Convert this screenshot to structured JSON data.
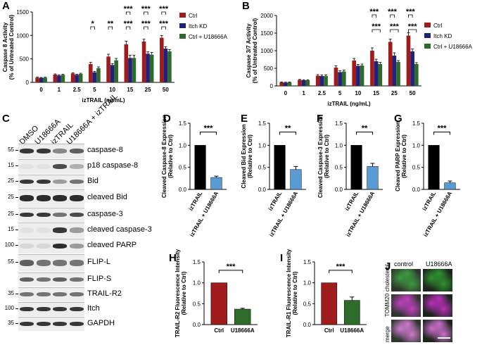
{
  "panels": {
    "A": {
      "label": "A"
    },
    "B": {
      "label": "B"
    },
    "C": {
      "label": "C"
    },
    "D": {
      "label": "D"
    },
    "E": {
      "label": "E"
    },
    "F": {
      "label": "F"
    },
    "G": {
      "label": "G"
    },
    "H": {
      "label": "H"
    },
    "I": {
      "label": "I"
    },
    "J": {
      "label": "J"
    }
  },
  "colors": {
    "ctrl": "#a01c1c",
    "itch_kd": "#22207a",
    "u18666a": "#2e6b2a",
    "black": "#000000",
    "blue": "#5b9bd5"
  },
  "chart_data": [
    {
      "id": "A",
      "type": "bar",
      "categories": [
        "0",
        "1",
        "2.5",
        "5",
        "10",
        "15",
        "25",
        "50"
      ],
      "xlabel": "izTRAIL (ng/mL)",
      "ylabel": "Caspase 8 Activity (% of Untreated Control)",
      "ylim": [
        0,
        1500
      ],
      "yticks": [
        "0",
        "500",
        "1000",
        "1500"
      ],
      "series": [
        {
          "name": "Ctrl",
          "color": "#a01c1c",
          "values": [
            100,
            165,
            190,
            390,
            550,
            810,
            870,
            950
          ],
          "err": [
            10,
            15,
            15,
            40,
            50,
            70,
            50,
            50
          ]
        },
        {
          "name": "Itch KD",
          "color": "#22207a",
          "values": [
            95,
            145,
            160,
            215,
            370,
            520,
            610,
            720
          ],
          "err": [
            10,
            15,
            15,
            20,
            30,
            60,
            40,
            40
          ]
        },
        {
          "name": "Ctrl + U18666A",
          "color": "#2e6b2a",
          "values": [
            100,
            160,
            180,
            300,
            470,
            520,
            590,
            660
          ],
          "err": [
            10,
            15,
            15,
            30,
            40,
            60,
            50,
            40
          ]
        }
      ],
      "legend": "top-right",
      "significance": [
        {
          "i": 3,
          "row": 1,
          "text": "*"
        },
        {
          "i": 4,
          "row": 1,
          "text": "**"
        },
        {
          "i": 5,
          "row": 2,
          "text": "***"
        },
        {
          "i": 6,
          "row": 2,
          "text": "***"
        },
        {
          "i": 7,
          "row": 2,
          "text": "***"
        },
        {
          "i": 5,
          "row": 1,
          "text": "***"
        },
        {
          "i": 6,
          "row": 1,
          "text": "***"
        },
        {
          "i": 7,
          "row": 1,
          "text": "***"
        }
      ]
    },
    {
      "id": "B",
      "type": "bar",
      "categories": [
        "0",
        "1",
        "2.5",
        "5",
        "10",
        "15",
        "25",
        "50"
      ],
      "xlabel": "izTRAIL (ng/mL)",
      "ylabel": "Caspase 3/7 Activity (% of Untreated Control)",
      "ylim": [
        0,
        2000
      ],
      "yticks": [
        "0",
        "500",
        "1000",
        "1500",
        "2000"
      ],
      "series": [
        {
          "name": "Ctrl",
          "color": "#a01c1c",
          "values": [
            100,
            170,
            290,
            520,
            720,
            1000,
            1250,
            1430
          ],
          "err": [
            10,
            15,
            30,
            50,
            60,
            80,
            80,
            80
          ]
        },
        {
          "name": "Itch KD",
          "color": "#22207a",
          "values": [
            95,
            160,
            280,
            390,
            570,
            700,
            860,
            980
          ],
          "err": [
            10,
            15,
            30,
            40,
            40,
            60,
            80,
            70
          ]
        },
        {
          "name": "Ctrl + U18666A",
          "color": "#2e6b2a",
          "values": [
            100,
            160,
            280,
            410,
            580,
            620,
            680,
            620
          ],
          "err": [
            10,
            15,
            30,
            40,
            40,
            50,
            40,
            40
          ]
        }
      ],
      "legend": "top-right",
      "significance": [
        {
          "i": 5,
          "row": 2,
          "text": "***"
        },
        {
          "i": 6,
          "row": 2,
          "text": "***"
        },
        {
          "i": 7,
          "row": 2,
          "text": "***"
        },
        {
          "i": 5,
          "row": 1,
          "text": "***"
        },
        {
          "i": 6,
          "row": 1,
          "text": "***"
        },
        {
          "i": 7,
          "row": 1,
          "text": "***"
        }
      ]
    },
    {
      "id": "D",
      "type": "bar",
      "categories": [
        "izTRAIL",
        "izTRAIL + U18666A"
      ],
      "ylabel": "Cleaved Caspase-8 Expression (Relative to Ctrl)",
      "ylim": [
        0,
        1.5
      ],
      "yticks": [
        "0.0",
        "0.5",
        "1.0",
        "1.5"
      ],
      "values": [
        1.0,
        0.27
      ],
      "err": [
        0,
        0.03
      ],
      "colors": [
        "#000000",
        "#5b9bd5"
      ],
      "sig": "***"
    },
    {
      "id": "E",
      "type": "bar",
      "categories": [
        "izTRAIL",
        "izTRAIL + U18666A"
      ],
      "ylabel": "Cleaved Bid Expression (Relative to Ctrl)",
      "ylim": [
        0,
        1.5
      ],
      "yticks": [
        "0.0",
        "0.5",
        "1.0",
        "1.5"
      ],
      "values": [
        1.0,
        0.45
      ],
      "err": [
        0,
        0.07
      ],
      "colors": [
        "#000000",
        "#5b9bd5"
      ],
      "sig": "**"
    },
    {
      "id": "F",
      "type": "bar",
      "categories": [
        "izTRAIL",
        "izTRAIL + U18666A"
      ],
      "ylabel": "Cleaved Caspase-3 Expression (Relative to Ctrl)",
      "ylim": [
        0,
        1.5
      ],
      "yticks": [
        "0.0",
        "0.5",
        "1.0",
        "1.5"
      ],
      "values": [
        1.0,
        0.52
      ],
      "err": [
        0,
        0.07
      ],
      "colors": [
        "#000000",
        "#5b9bd5"
      ],
      "sig": "**"
    },
    {
      "id": "G",
      "type": "bar",
      "categories": [
        "izTRAIL",
        "izTRAIL + U18666A"
      ],
      "ylabel": "Cleaved PARP Expression (Relative to Ctrl)",
      "ylim": [
        0,
        1.5
      ],
      "yticks": [
        "0.0",
        "0.5",
        "1.0",
        "1.5"
      ],
      "values": [
        1.0,
        0.15
      ],
      "err": [
        0,
        0.04
      ],
      "colors": [
        "#000000",
        "#5b9bd5"
      ],
      "sig": "***"
    },
    {
      "id": "H",
      "type": "bar",
      "categories": [
        "Ctrl",
        "U18666A"
      ],
      "ylabel": "TRAIL-R2 Fluorescence Intensity (Relative to Ctrl)",
      "ylim": [
        0,
        1.5
      ],
      "yticks": [
        "0.0",
        "0.5",
        "1.0",
        "1.5"
      ],
      "values": [
        1.0,
        0.37
      ],
      "err": [
        0,
        0.02
      ],
      "colors": [
        "#a01c1c",
        "#2e6b2a"
      ],
      "sig": "***"
    },
    {
      "id": "I",
      "type": "bar",
      "categories": [
        "Ctrl",
        "U18666A"
      ],
      "ylabel": "TRAIL-R1 Fluorescence Intensity (Relative to Ctrl)",
      "ylim": [
        0,
        1.5
      ],
      "yticks": [
        "0.0",
        "0.5",
        "1.0",
        "1.5"
      ],
      "values": [
        1.0,
        0.58
      ],
      "err": [
        0,
        0.08
      ],
      "colors": [
        "#a01c1c",
        "#2e6b2a"
      ],
      "sig": "***"
    }
  ],
  "blot": {
    "lanes": [
      "DMSO",
      "U18666A",
      "izTRAIL",
      "U18666A + izTRAIL"
    ],
    "rows": [
      {
        "name": "caspase-8",
        "mw": "55",
        "intensity": [
          0.9,
          0.9,
          0.5,
          0.7
        ]
      },
      {
        "name": "p18 caspase-8",
        "mw": "15",
        "intensity": [
          0.05,
          0.05,
          0.8,
          0.3
        ]
      },
      {
        "name": "Bid",
        "mw": "25",
        "intensity": [
          0.9,
          0.9,
          0.4,
          0.6
        ]
      },
      {
        "name": "cleaved Bid",
        "mw": "25",
        "intensity": [
          0.95,
          0.95,
          0.95,
          0.95
        ]
      },
      {
        "name": "caspase-3",
        "mw": "25",
        "intensity": [
          0.9,
          0.9,
          0.6,
          0.8
        ]
      },
      {
        "name": "cleaved caspase-3",
        "mw": "15",
        "intensity": [
          0.05,
          0.05,
          0.9,
          0.4
        ]
      },
      {
        "name": "cleaved PARP",
        "mw": "100",
        "intensity": [
          0.1,
          0.1,
          0.95,
          0.4
        ]
      },
      {
        "name": "FLIP-L",
        "mw": "55",
        "intensity": [
          0.7,
          0.6,
          0.6,
          0.6
        ]
      },
      {
        "name": "FLIP-S",
        "mw": "",
        "intensity": [
          0.7,
          0.6,
          0.7,
          0.6
        ]
      },
      {
        "name": "TRAIL-R2",
        "mw": "35",
        "intensity": [
          0.6,
          0.6,
          0.6,
          0.6
        ]
      },
      {
        "name": "Itch",
        "mw": "100",
        "intensity": [
          0.9,
          0.9,
          0.9,
          0.9
        ]
      },
      {
        "name": "GAPDH",
        "mw": "35",
        "intensity": [
          0.9,
          0.9,
          0.9,
          0.9
        ]
      }
    ]
  },
  "micrographs": {
    "columns": [
      "control",
      "U18666A"
    ],
    "rows": [
      {
        "name": "cholesterol",
        "tint": "#1f8a1f"
      },
      {
        "name": "TOMM20",
        "tint": "#b420b4"
      },
      {
        "name": "merge",
        "tint": "#c864c8"
      }
    ]
  }
}
